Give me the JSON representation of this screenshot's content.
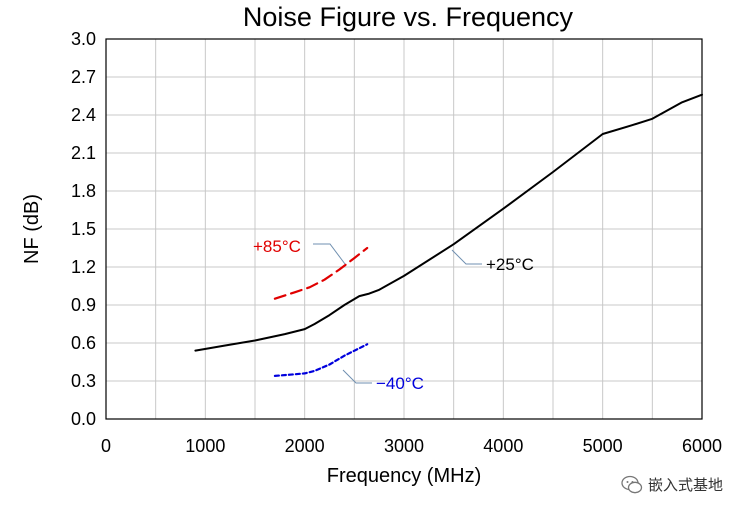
{
  "chart_data": {
    "type": "line",
    "title": "Noise Figure vs. Frequency",
    "xlabel": "Frequency (MHz)",
    "ylabel": "NF (dB)",
    "xlim": [
      0,
      6000
    ],
    "ylim": [
      0,
      3.0
    ],
    "xticks": [
      0,
      1000,
      2000,
      3000,
      4000,
      5000,
      6000
    ],
    "yticks": [
      "0.0",
      "0.3",
      "0.6",
      "0.9",
      "1.2",
      "1.5",
      "1.8",
      "2.1",
      "2.4",
      "2.7",
      "3.0"
    ],
    "grid": true,
    "series": [
      {
        "name": "+25°C",
        "color": "#000000",
        "style": "solid",
        "x": [
          900,
          1200,
          1500,
          1800,
          2000,
          2100,
          2250,
          2400,
          2550,
          2650,
          2750,
          3000,
          3500,
          4000,
          4500,
          5000,
          5300,
          5500,
          5800,
          6000
        ],
        "y": [
          0.54,
          0.58,
          0.62,
          0.67,
          0.71,
          0.75,
          0.82,
          0.9,
          0.97,
          0.99,
          1.02,
          1.13,
          1.38,
          1.66,
          1.95,
          2.25,
          2.32,
          2.37,
          2.5,
          2.56
        ]
      },
      {
        "name": "+85°C",
        "color": "#e00000",
        "style": "dashed",
        "x": [
          1700,
          1900,
          2050,
          2200,
          2350,
          2500,
          2630
        ],
        "y": [
          0.95,
          1.0,
          1.04,
          1.1,
          1.18,
          1.27,
          1.35
        ]
      },
      {
        "name": "−40°C",
        "color": "#0000dd",
        "style": "dotted",
        "x": [
          1700,
          1850,
          2000,
          2100,
          2250,
          2400,
          2630
        ],
        "y": [
          0.34,
          0.35,
          0.36,
          0.38,
          0.43,
          0.5,
          0.59
        ]
      }
    ],
    "annotations": [
      {
        "text": "+85°C",
        "color": "#e00000",
        "series": 1
      },
      {
        "text": "+25°C",
        "color": "#000000",
        "series": 0
      },
      {
        "text": "−40°C",
        "color": "#0000dd",
        "series": 2
      }
    ]
  },
  "watermark": {
    "text": "嵌入式基地",
    "icon": "wechat-icon"
  }
}
